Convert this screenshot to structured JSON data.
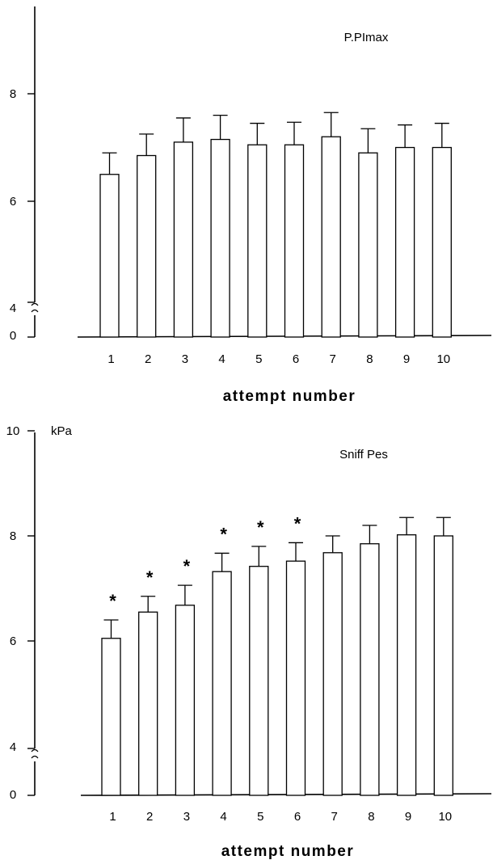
{
  "chart_data": [
    {
      "type": "bar",
      "title": "P.PImax",
      "xlabel": "attempt number",
      "ylabel": "",
      "categories": [
        "1",
        "2",
        "3",
        "4",
        "5",
        "6",
        "7",
        "8",
        "9",
        "10"
      ],
      "values": [
        6.5,
        6.85,
        7.1,
        7.15,
        7.05,
        7.05,
        7.2,
        6.9,
        7.0,
        7.0
      ],
      "errors": [
        0.4,
        0.4,
        0.45,
        0.45,
        0.4,
        0.42,
        0.45,
        0.45,
        0.42,
        0.45
      ],
      "yticks": [
        {
          "value": 8,
          "label": "8"
        },
        {
          "value": 6,
          "label": "6"
        },
        {
          "value": 4,
          "label": "4"
        },
        {
          "value": 0,
          "label": "0"
        }
      ],
      "axis_break": "~",
      "ylim_shown": [
        4,
        10.5
      ],
      "markers": []
    },
    {
      "type": "bar",
      "title": "Sniff Pes",
      "xlabel": "attempt number",
      "ylabel": "kPa",
      "categories": [
        "1",
        "2",
        "3",
        "4",
        "5",
        "6",
        "7",
        "8",
        "9",
        "10"
      ],
      "values": [
        6.05,
        6.55,
        6.68,
        7.32,
        7.42,
        7.52,
        7.68,
        7.85,
        8.02,
        8.0
      ],
      "errors": [
        0.35,
        0.3,
        0.38,
        0.35,
        0.38,
        0.35,
        0.32,
        0.35,
        0.33,
        0.35
      ],
      "yticks": [
        {
          "value": 10,
          "label": "10"
        },
        {
          "value": 8,
          "label": "8"
        },
        {
          "value": 6,
          "label": "6"
        },
        {
          "value": 4,
          "label": "4"
        },
        {
          "value": 0,
          "label": "0"
        }
      ],
      "axis_break": "~",
      "ylim_shown": [
        4,
        10
      ],
      "markers": [
        "*",
        "*",
        "*",
        "*",
        "*",
        "*",
        "",
        "",
        "",
        ""
      ]
    }
  ]
}
